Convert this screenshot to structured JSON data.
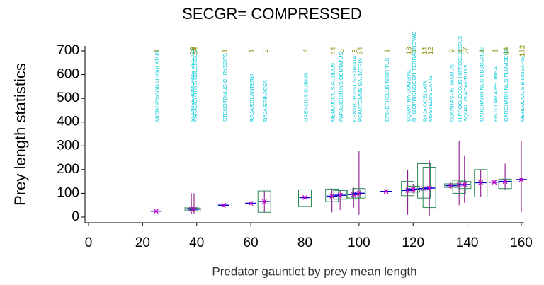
{
  "chart_data": {
    "type": "box",
    "title": "SECGR= COMPRESSED",
    "x_label": "Predator gauntlet by prey mean length",
    "y_label": "Prey length statistics",
    "xlim": [
      0,
      160
    ],
    "ylim": [
      0,
      700
    ],
    "xticks": [
      0,
      20,
      40,
      60,
      80,
      100,
      120,
      140,
      160
    ],
    "yticks": [
      0,
      100,
      200,
      300,
      400,
      500,
      600,
      700
    ],
    "box_color": "#2e8b57",
    "whisker_color": "#800080",
    "mean_color": "#cc00cc",
    "label_color": "#00c8d8",
    "count_color": "#8a8a00",
    "groups": [
      {
        "name": "MICROPOGON UNDULATUS",
        "x": 25,
        "n": 1,
        "mean": 25,
        "q1": null,
        "q3": null,
        "lo": 20,
        "hi": 28
      },
      {
        "name": "SCOMBEROMORUS REGALIS",
        "x": 38,
        "n": 28,
        "mean": 35,
        "q1": 27,
        "q3": 42,
        "lo": 15,
        "hi": 100
      },
      {
        "name": "PARALICHTHYS OBLONGUS",
        "x": 39,
        "n": 34,
        "mean": 33,
        "q1": 25,
        "q3": 38,
        "lo": 15,
        "hi": 100
      },
      {
        "name": "STENOTOMUS CHRYSOPS",
        "x": 50,
        "n": 1,
        "mean": 50,
        "q1": null,
        "q3": null,
        "lo": 45,
        "hi": 55
      },
      {
        "name": "RAJA EGLANTERIA",
        "x": 60,
        "n": 1,
        "mean": 58,
        "q1": null,
        "q3": null,
        "lo": 55,
        "hi": 62
      },
      {
        "name": "RAJA ERINACEA",
        "x": 65,
        "n": 2,
        "mean": 65,
        "q1": 20,
        "q3": 110,
        "lo": 20,
        "hi": 110
      },
      {
        "name": "URENCIUS DUBIUS",
        "x": 80,
        "n": 4,
        "mean": 82,
        "q1": 45,
        "q3": 115,
        "lo": 30,
        "hi": 115
      },
      {
        "name": "MERLUCCIUS ALBIDUS",
        "x": 90,
        "n": 44,
        "mean": 88,
        "q1": 65,
        "q3": 118,
        "lo": 20,
        "hi": 120
      },
      {
        "name": "PARALICHTHYS DENTATUS",
        "x": 93,
        "n": 3,
        "mean": 92,
        "q1": 75,
        "q3": 112,
        "lo": 30,
        "hi": 115
      },
      {
        "name": "CENTROPRISTIS STRIATA",
        "x": 98,
        "n": 3,
        "mean": 95,
        "q1": 80,
        "q3": 115,
        "lo": 40,
        "hi": 125
      },
      {
        "name": "POMATOMUS SALTATRIX",
        "x": 100,
        "n": 34,
        "mean": 100,
        "q1": 80,
        "q3": 120,
        "lo": 10,
        "hi": 280
      },
      {
        "name": "EPINEPHELUS NIGRITUS",
        "x": 110,
        "n": 1,
        "mean": 108,
        "q1": null,
        "q3": null,
        "lo": 103,
        "hi": 113
      },
      {
        "name": "SQUATINA DUMERIL",
        "x": 118,
        "n": 13,
        "mean": 112,
        "q1": 90,
        "q3": 150,
        "lo": 10,
        "hi": 200
      },
      {
        "name": "RHIZOPRIONODON TERRAENOVAE",
        "x": 120,
        "n": 1,
        "mean": 118,
        "q1": 105,
        "q3": 130,
        "lo": 100,
        "hi": 140
      },
      {
        "name": "RAJA OCELLATA",
        "x": 124,
        "n": 14,
        "mean": 120,
        "q1": 80,
        "q3": 225,
        "lo": 20,
        "hi": 250
      },
      {
        "name": "MUSTELUS CANIS",
        "x": 126,
        "n": 12,
        "mean": 122,
        "q1": 40,
        "q3": 210,
        "lo": 5,
        "hi": 240
      },
      {
        "name": "ODONTASPIS TAURUS",
        "x": 134,
        "n": 9,
        "mean": 132,
        "q1": 125,
        "q3": 140,
        "lo": 120,
        "hi": 145
      },
      {
        "name": "HIPPOGLOSSUS HIPPOGLOSSUS",
        "x": 137,
        "n": 4,
        "mean": 135,
        "q1": 100,
        "q3": 155,
        "lo": 50,
        "hi": 320
      },
      {
        "name": "SQUALUS ACANTHIAS",
        "x": 139,
        "n": 57,
        "mean": 137,
        "q1": 120,
        "q3": 150,
        "lo": 60,
        "hi": 260
      },
      {
        "name": "CARCHARHINUS OBSCURUS",
        "x": 145,
        "n": 1,
        "mean": 145,
        "q1": 85,
        "q3": 200,
        "lo": 85,
        "hi": 200
      },
      {
        "name": "FISTULARIA PETIMBA",
        "x": 150,
        "n": 1,
        "mean": 147,
        "q1": null,
        "q3": null,
        "lo": 140,
        "hi": 155
      },
      {
        "name": "CARCHARHINUS PLUMBEUS",
        "x": 154,
        "n": 14,
        "mean": 150,
        "q1": 120,
        "q3": 160,
        "lo": 115,
        "hi": 225
      },
      {
        "name": "MERLUCCIUS BILINEARIS",
        "x": 160,
        "n": 132,
        "mean": 158,
        "q1": null,
        "q3": null,
        "lo": 20,
        "hi": 320
      }
    ]
  }
}
